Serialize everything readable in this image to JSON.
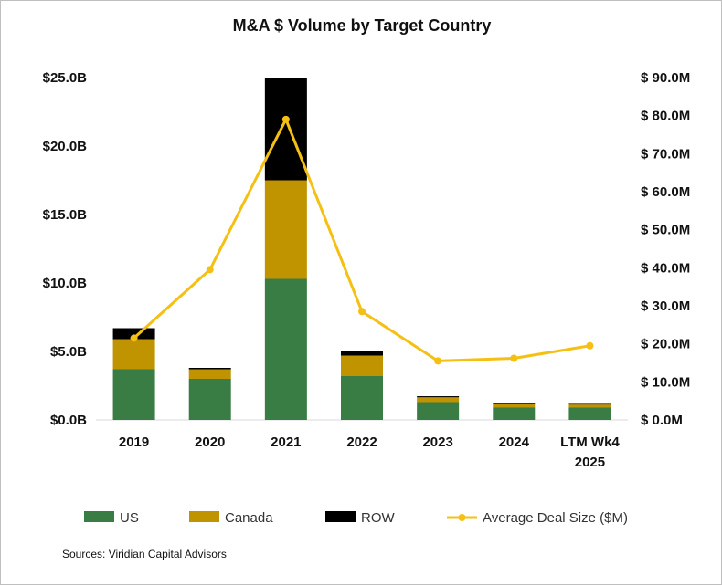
{
  "chart_data": {
    "type": "bar",
    "title": "M&A $ Volume by Target Country",
    "categories": [
      "2019",
      "2020",
      "2021",
      "2022",
      "2023",
      "2024",
      "LTM Wk4 2025"
    ],
    "category_lines": [
      [
        "2019"
      ],
      [
        "2020"
      ],
      [
        "2021"
      ],
      [
        "2022"
      ],
      [
        "2023"
      ],
      [
        "2024"
      ],
      [
        "LTM Wk4",
        "2025"
      ]
    ],
    "stacked": true,
    "series": [
      {
        "name": "US",
        "axis": "left",
        "color": "#3a7d44",
        "values": [
          3.7,
          3.0,
          10.3,
          3.2,
          1.3,
          0.9,
          0.9
        ]
      },
      {
        "name": "Canada",
        "axis": "left",
        "color": "#c09400",
        "values": [
          2.2,
          0.7,
          7.2,
          1.5,
          0.35,
          0.25,
          0.22
        ]
      },
      {
        "name": "ROW",
        "axis": "left",
        "color": "#000000",
        "values": [
          0.8,
          0.1,
          7.5,
          0.3,
          0.08,
          0.05,
          0.05
        ]
      }
    ],
    "line_series": [
      {
        "name": "Average Deal Size ($M)",
        "axis": "right",
        "color": "#f5c013",
        "values": [
          21.5,
          39.5,
          79.0,
          28.5,
          15.5,
          16.2,
          19.5
        ]
      }
    ],
    "y_left": {
      "min": 0,
      "max": 25,
      "ticks": [
        0,
        5,
        10,
        15,
        20,
        25
      ],
      "tick_labels": [
        "$0.0B",
        "$5.0B",
        "$10.0B",
        "$15.0B",
        "$20.0B",
        "$25.0B"
      ]
    },
    "y_right": {
      "min": 0,
      "max": 90,
      "ticks": [
        0,
        10,
        20,
        30,
        40,
        50,
        60,
        70,
        80,
        90
      ],
      "tick_labels": [
        "$ 0.0M",
        "$ 10.0M",
        "$ 20.0M",
        "$ 30.0M",
        "$ 40.0M",
        "$ 50.0M",
        "$ 60.0M",
        "$ 70.0M",
        "$ 80.0M",
        "$ 90.0M"
      ]
    },
    "grid": false,
    "legend_position": "bottom",
    "source": "Sources: Viridian Capital Advisors"
  }
}
